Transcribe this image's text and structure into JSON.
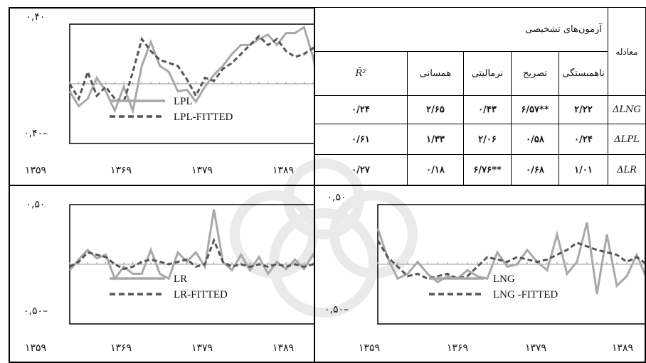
{
  "table": {
    "header_equation": "معادله",
    "header_tests": "آزمون‌های تشخیصی",
    "col_autocorrelation": "ناهمبستگی",
    "col_specification": "تصریح",
    "col_normality": "نرمالیتی",
    "col_homoscedasticity": "همسانی",
    "col_r2": "R̄²",
    "rows": [
      {
        "eq": "ΔLNG",
        "autocorrelation": "۲/۲۲",
        "specification": "**۶/۵۷",
        "normality": "۰/۴۳",
        "homoscedasticity": "۲/۶۵",
        "r2": "۰/۲۴"
      },
      {
        "eq": "ΔLPL",
        "autocorrelation": "۰/۲۴",
        "specification": "۰/۵۸",
        "normality": "۲/۰۶",
        "homoscedasticity": "۱/۳۳",
        "r2": "۰/۶۱"
      },
      {
        "eq": "ΔLR",
        "autocorrelation": "۱/۰۱",
        "specification": "۰/۶۸",
        "normality": "**۶/۷۶",
        "homoscedasticity": "۰/۱۸",
        "r2": "۰/۲۷"
      }
    ]
  },
  "colors": {
    "actual": "#a8a8a8",
    "fitted": "#555555"
  },
  "chart_data": [
    {
      "type": "line",
      "ylim": [
        -0.4,
        0.4
      ],
      "ytick_top": "۰,۴۰",
      "ytick_bottom": "۰,۴۰–",
      "xticks": [
        1359,
        1369,
        1379,
        1389
      ],
      "xtick_labels": [
        "۱۳۵۹",
        "۱۳۶۹",
        "۱۳۷۹",
        "۱۳۸۹"
      ],
      "x": [
        1359,
        1360,
        1361,
        1362,
        1363,
        1364,
        1365,
        1366,
        1367,
        1368,
        1369,
        1370,
        1371,
        1372,
        1373,
        1374,
        1375,
        1376,
        1377,
        1378,
        1379,
        1380,
        1381,
        1382,
        1383,
        1384,
        1385,
        1386,
        1387,
        1388,
        1389
      ],
      "series": [
        {
          "name": "LPL",
          "values": [
            -0.05,
            -0.15,
            -0.1,
            0.04,
            -0.05,
            -0.18,
            -0.02,
            -0.18,
            0.12,
            0.28,
            0.12,
            0.08,
            -0.05,
            -0.04,
            -0.12,
            -0.02,
            0.06,
            0.12,
            0.2,
            0.26,
            0.26,
            0.3,
            0.33,
            0.26,
            0.34,
            0.34,
            0.38,
            0.18,
            -0.12,
            0.08,
            0.22
          ]
        },
        {
          "name": "LPL-FITTED",
          "values": [
            0.0,
            -0.1,
            0.08,
            -0.08,
            -0.02,
            -0.1,
            -0.12,
            0.08,
            0.3,
            0.22,
            0.16,
            0.14,
            0.12,
            0.03,
            -0.08,
            0.04,
            0.02,
            0.1,
            0.14,
            0.2,
            0.26,
            0.32,
            0.26,
            0.3,
            0.22,
            0.18,
            0.2,
            0.24,
            0.16,
            -0.08,
            0.12
          ]
        }
      ],
      "legend": [
        "LPL",
        "LPL-FITTED"
      ]
    },
    {
      "type": "line",
      "ylim": [
        -0.5,
        0.5
      ],
      "ytick_top": "۰,۵۰",
      "ytick_bottom": "۰,۵۰–",
      "xticks": [
        1359,
        1369,
        1379,
        1389
      ],
      "xtick_labels": [
        "۱۳۵۹",
        "۱۳۶۹",
        "۱۳۷۹",
        "۱۳۸۹"
      ],
      "x": [
        1359,
        1360,
        1361,
        1362,
        1363,
        1364,
        1365,
        1366,
        1367,
        1368,
        1369,
        1370,
        1371,
        1372,
        1373,
        1374,
        1375,
        1376,
        1377,
        1378,
        1379,
        1380,
        1381,
        1382,
        1383,
        1384,
        1385,
        1386,
        1387,
        1388,
        1389
      ],
      "series": [
        {
          "name": "LR",
          "values": [
            -0.05,
            0.04,
            0.12,
            0.05,
            0.08,
            -0.12,
            -0.02,
            -0.08,
            -0.08,
            0.12,
            -0.08,
            -0.12,
            0.1,
            0.02,
            0.1,
            -0.02,
            0.46,
            0.02,
            -0.05,
            0.08,
            -0.05,
            0.06,
            -0.08,
            0.02,
            -0.04,
            0.04,
            -0.04,
            0.08,
            -0.08,
            -0.05,
            0.18
          ]
        },
        {
          "name": "LR-FITTED",
          "values": [
            -0.02,
            0.02,
            0.1,
            0.08,
            0.06,
            0.0,
            -0.04,
            -0.02,
            0.02,
            0.04,
            0.02,
            0.0,
            0.02,
            0.04,
            -0.02,
            0.0,
            0.2,
            0.02,
            -0.02,
            0.0,
            -0.02,
            0.0,
            -0.02,
            0.0,
            -0.02,
            0.0,
            -0.02,
            0.0,
            -0.02,
            -0.02,
            -0.04
          ]
        }
      ],
      "legend": [
        "LR",
        "LR-FITTED"
      ]
    },
    {
      "type": "line",
      "ylim": [
        -0.5,
        0.5
      ],
      "ytick_top": "۰,۵۰",
      "ytick_bottom": "۰,۵۰–",
      "xticks": [
        1359,
        1369,
        1379,
        1389
      ],
      "xtick_labels": [
        "۱۳۵۹",
        "۱۳۶۹",
        "۱۳۷۹",
        "۱۳۸۹"
      ],
      "x": [
        1359,
        1360,
        1361,
        1362,
        1363,
        1364,
        1365,
        1366,
        1367,
        1368,
        1369,
        1370,
        1371,
        1372,
        1373,
        1374,
        1375,
        1376,
        1377,
        1378,
        1379,
        1380,
        1381,
        1382,
        1383,
        1384,
        1385,
        1386,
        1387,
        1388,
        1389
      ],
      "series": [
        {
          "name": "LNG",
          "values": [
            0.3,
            0.05,
            -0.12,
            -0.08,
            0.02,
            -0.08,
            -0.15,
            -0.1,
            -0.12,
            -0.05,
            -0.1,
            -0.12,
            0.1,
            -0.02,
            0.0,
            0.12,
            0.02,
            -0.05,
            0.25,
            -0.08,
            0.02,
            0.35,
            -0.25,
            0.25,
            -0.18,
            -0.1,
            0.08,
            -0.12,
            -0.06,
            0.22,
            -0.05
          ]
        },
        {
          "name": "LNG -FITTED",
          "values": [
            0.2,
            0.06,
            -0.02,
            -0.1,
            -0.08,
            -0.12,
            -0.1,
            -0.08,
            -0.12,
            -0.1,
            -0.02,
            0.06,
            0.04,
            0.02,
            0.06,
            0.04,
            0.02,
            0.04,
            0.08,
            0.12,
            0.18,
            0.15,
            0.12,
            0.1,
            0.08,
            0.02,
            0.06,
            0.0,
            -0.04,
            0.02,
            -0.02
          ]
        }
      ],
      "legend": [
        "LNG",
        "LNG -FITTED"
      ]
    }
  ]
}
